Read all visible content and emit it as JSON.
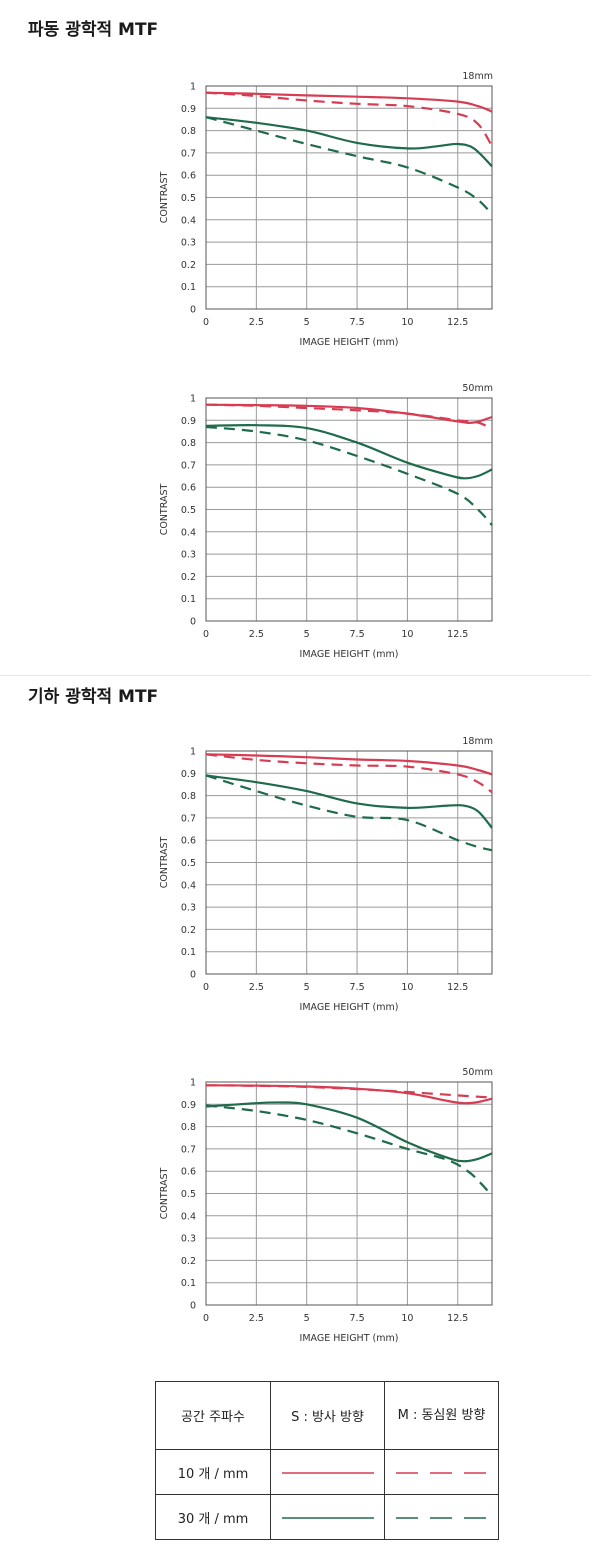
{
  "sections": [
    {
      "title": "파동 광학적 MTF"
    },
    {
      "title": "기하 광학적 MTF"
    }
  ],
  "chart_data": [
    {
      "type": "line",
      "title": "18mm",
      "xlabel": "IMAGE HEIGHT (mm)",
      "ylabel": "CONTRAST",
      "xlim": [
        0,
        14.2
      ],
      "ylim": [
        0,
        1
      ],
      "xticks": [
        "0",
        "2.5",
        "5",
        "7.5",
        "10",
        "12.5"
      ],
      "yticks": [
        "0",
        "0.1",
        "0.2",
        "0.3",
        "0.4",
        "0.5",
        "0.6",
        "0.7",
        "0.8",
        "0.9",
        "1"
      ],
      "grid": true,
      "series": [
        {
          "name": "10 개 / mm S",
          "x": [
            0,
            2.5,
            5,
            7.5,
            10,
            12.5,
            13.5,
            14.2
          ],
          "values": [
            0.97,
            0.965,
            0.958,
            0.952,
            0.945,
            0.93,
            0.91,
            0.885
          ]
        },
        {
          "name": "10 개 / mm M",
          "x": [
            0,
            2.5,
            5,
            7.5,
            10,
            12.5,
            13.5,
            14.2
          ],
          "values": [
            0.97,
            0.955,
            0.935,
            0.92,
            0.91,
            0.875,
            0.83,
            0.73
          ]
        },
        {
          "name": "30 개 / mm S",
          "x": [
            0,
            2.5,
            5,
            7.5,
            10,
            11.5,
            12.5,
            13.3,
            14.2
          ],
          "values": [
            0.86,
            0.835,
            0.8,
            0.745,
            0.72,
            0.73,
            0.74,
            0.72,
            0.64
          ]
        },
        {
          "name": "30 개 / mm M",
          "x": [
            0,
            2.5,
            5,
            7.5,
            10,
            12.5,
            13.5,
            14.2
          ],
          "values": [
            0.86,
            0.8,
            0.74,
            0.685,
            0.635,
            0.545,
            0.49,
            0.425
          ]
        }
      ]
    },
    {
      "type": "line",
      "title": "50mm",
      "xlabel": "IMAGE HEIGHT (mm)",
      "ylabel": "CONTRAST",
      "xlim": [
        0,
        14.2
      ],
      "ylim": [
        0,
        1
      ],
      "xticks": [
        "0",
        "2.5",
        "5",
        "7.5",
        "10",
        "12.5"
      ],
      "yticks": [
        "0",
        "0.1",
        "0.2",
        "0.3",
        "0.4",
        "0.5",
        "0.6",
        "0.7",
        "0.8",
        "0.9",
        "1"
      ],
      "grid": true,
      "series": [
        {
          "name": "10 개 / mm S",
          "x": [
            0,
            2.5,
            5,
            7.5,
            10,
            12.5,
            13.3,
            14.2
          ],
          "values": [
            0.97,
            0.968,
            0.965,
            0.955,
            0.93,
            0.895,
            0.89,
            0.915
          ]
        },
        {
          "name": "10 개 / mm M",
          "x": [
            0,
            2.5,
            5,
            7.5,
            10,
            12.5,
            13.5,
            14.2
          ],
          "values": [
            0.97,
            0.965,
            0.955,
            0.945,
            0.93,
            0.9,
            0.89,
            0.86
          ]
        },
        {
          "name": "30 개 / mm S",
          "x": [
            0,
            2.5,
            5,
            7.5,
            10,
            12,
            12.8,
            13.5,
            14.2
          ],
          "values": [
            0.875,
            0.878,
            0.865,
            0.8,
            0.71,
            0.655,
            0.64,
            0.65,
            0.68
          ]
        },
        {
          "name": "30 개 / mm M",
          "x": [
            0,
            2.5,
            5,
            7.5,
            10,
            12.5,
            13.5,
            14.2
          ],
          "values": [
            0.87,
            0.85,
            0.81,
            0.74,
            0.66,
            0.57,
            0.5,
            0.43
          ]
        }
      ]
    },
    {
      "type": "line",
      "title": "18mm",
      "xlabel": "IMAGE HEIGHT (mm)",
      "ylabel": "CONTRAST",
      "xlim": [
        0,
        14.2
      ],
      "ylim": [
        0,
        1
      ],
      "xticks": [
        "0",
        "2.5",
        "5",
        "7.5",
        "10",
        "12.5"
      ],
      "yticks": [
        "0",
        "0.1",
        "0.2",
        "0.3",
        "0.4",
        "0.5",
        "0.6",
        "0.7",
        "0.8",
        "0.9",
        "1"
      ],
      "grid": true,
      "series": [
        {
          "name": "10 개 / mm S",
          "x": [
            0,
            2.5,
            5,
            7.5,
            10,
            12.5,
            13.5,
            14.2
          ],
          "values": [
            0.985,
            0.98,
            0.972,
            0.962,
            0.955,
            0.935,
            0.915,
            0.895
          ]
        },
        {
          "name": "10 개 / mm M",
          "x": [
            0,
            2.5,
            5,
            7.5,
            10,
            12.5,
            13.5,
            14.2
          ],
          "values": [
            0.985,
            0.96,
            0.945,
            0.935,
            0.93,
            0.895,
            0.86,
            0.815
          ]
        },
        {
          "name": "30 개 / mm S",
          "x": [
            0,
            2.5,
            5,
            7.5,
            10,
            12,
            12.8,
            13.5,
            14.2
          ],
          "values": [
            0.89,
            0.86,
            0.82,
            0.765,
            0.745,
            0.755,
            0.755,
            0.73,
            0.655
          ]
        },
        {
          "name": "30 개 / mm M",
          "x": [
            0,
            2.5,
            5,
            7.5,
            10,
            12.5,
            13.5,
            14.2
          ],
          "values": [
            0.89,
            0.82,
            0.755,
            0.705,
            0.69,
            0.6,
            0.57,
            0.555
          ]
        }
      ]
    },
    {
      "type": "line",
      "title": "50mm",
      "xlabel": "IMAGE HEIGHT (mm)",
      "ylabel": "CONTRAST",
      "xlim": [
        0,
        14.2
      ],
      "ylim": [
        0,
        1
      ],
      "xticks": [
        "0",
        "2.5",
        "5",
        "7.5",
        "10",
        "12.5"
      ],
      "yticks": [
        "0",
        "0.1",
        "0.2",
        "0.3",
        "0.4",
        "0.5",
        "0.6",
        "0.7",
        "0.8",
        "0.9",
        "1"
      ],
      "grid": true,
      "series": [
        {
          "name": "10 개 / mm S",
          "x": [
            0,
            2.5,
            5,
            7.5,
            10,
            12,
            12.8,
            13.5,
            14.2
          ],
          "values": [
            0.985,
            0.984,
            0.98,
            0.97,
            0.95,
            0.915,
            0.905,
            0.91,
            0.925
          ]
        },
        {
          "name": "10 개 / mm M",
          "x": [
            0,
            2.5,
            5,
            7.5,
            10,
            12.5,
            14.2
          ],
          "values": [
            0.985,
            0.983,
            0.978,
            0.968,
            0.955,
            0.94,
            0.93
          ]
        },
        {
          "name": "30 개 / mm S",
          "x": [
            0,
            2.5,
            3.8,
            5,
            7.5,
            10,
            12,
            12.8,
            13.5,
            14.2
          ],
          "values": [
            0.89,
            0.905,
            0.908,
            0.9,
            0.84,
            0.73,
            0.66,
            0.645,
            0.655,
            0.68
          ]
        },
        {
          "name": "30 개 / mm M",
          "x": [
            0,
            2.5,
            5,
            7.5,
            10,
            12,
            13,
            13.6,
            14.2
          ],
          "values": [
            0.895,
            0.87,
            0.83,
            0.77,
            0.7,
            0.65,
            0.6,
            0.55,
            0.49
          ]
        }
      ]
    }
  ],
  "legend": {
    "header": {
      "freq": "공간 주파수",
      "s": "S : 방사 방향",
      "m": "M : 동심원 방향"
    },
    "rows": [
      {
        "label": "10 개 / mm",
        "color": "#d63d52"
      },
      {
        "label": "30 개 / mm",
        "color": "#1f6b4a"
      }
    ]
  },
  "colors": {
    "red": "#d63d52",
    "green": "#1f6b4a",
    "grid": "#9a9a9a"
  }
}
